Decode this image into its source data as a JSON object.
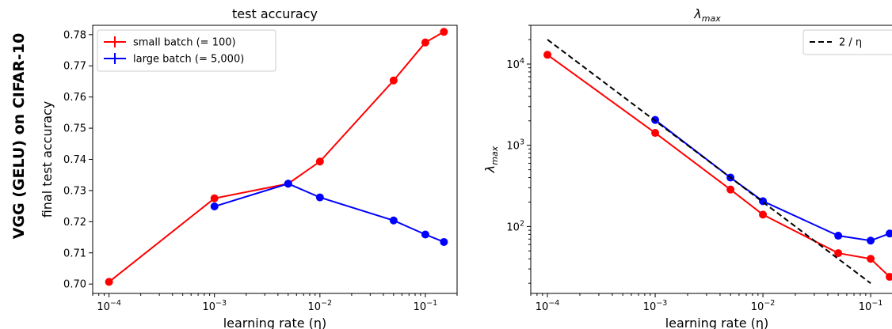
{
  "row_label": "VGG (GELU) on CIFAR-10",
  "chart_data": [
    {
      "type": "line",
      "title": "test accuracy",
      "xlabel": "learning rate (η)",
      "ylabel": "final test accuracy",
      "xscale": "log",
      "yscale": "linear",
      "xlim": [
        7e-05,
        0.2
      ],
      "ylim": [
        0.697,
        0.783
      ],
      "xticks": [
        {
          "base": "10",
          "exp": "−4",
          "value": 0.0001
        },
        {
          "base": "10",
          "exp": "−3",
          "value": 0.001
        },
        {
          "base": "10",
          "exp": "−2",
          "value": 0.01
        },
        {
          "base": "10",
          "exp": "−1",
          "value": 0.1
        }
      ],
      "yticks": [
        {
          "label": "0.70",
          "value": 0.7
        },
        {
          "label": "0.71",
          "value": 0.71
        },
        {
          "label": "0.72",
          "value": 0.72
        },
        {
          "label": "0.73",
          "value": 0.73
        },
        {
          "label": "0.74",
          "value": 0.74
        },
        {
          "label": "0.75",
          "value": 0.75
        },
        {
          "label": "0.76",
          "value": 0.76
        },
        {
          "label": "0.77",
          "value": 0.77
        },
        {
          "label": "0.78",
          "value": 0.78
        }
      ],
      "legend_position": "top-left",
      "series": [
        {
          "name": "small batch (= 100)",
          "color": "#ff0000",
          "x": [
            0.0001,
            0.001,
            0.005,
            0.01,
            0.05,
            0.1,
            0.15
          ],
          "y": [
            0.7007,
            0.7275,
            0.7322,
            0.7393,
            0.7653,
            0.7775,
            0.7809
          ]
        },
        {
          "name": "large batch (= 5,000)",
          "color": "#0000ff",
          "x": [
            0.001,
            0.005,
            0.01,
            0.05,
            0.1,
            0.15
          ],
          "y": [
            0.7249,
            0.7322,
            0.7278,
            0.7204,
            0.7159,
            0.7135
          ]
        }
      ]
    },
    {
      "type": "line",
      "title": "λmax",
      "title_base": "λ",
      "title_sub": "max",
      "xlabel": "learning rate (η)",
      "ylabel": "λmax",
      "xscale": "log",
      "yscale": "log",
      "xlim": [
        7e-05,
        0.2
      ],
      "ylim": [
        15,
        30000
      ],
      "xticks": [
        {
          "base": "10",
          "exp": "−4",
          "value": 0.0001
        },
        {
          "base": "10",
          "exp": "−3",
          "value": 0.001
        },
        {
          "base": "10",
          "exp": "−2",
          "value": 0.01
        },
        {
          "base": "10",
          "exp": "−1",
          "value": 0.1
        }
      ],
      "yticks": [
        {
          "base": "10",
          "exp": "2",
          "value": 100
        },
        {
          "base": "10",
          "exp": "3",
          "value": 1000
        },
        {
          "base": "10",
          "exp": "4",
          "value": 10000
        }
      ],
      "legend_position": "top-right",
      "series": [
        {
          "name": "",
          "color": "#ff0000",
          "x": [
            0.0001,
            0.001,
            0.005,
            0.01,
            0.05,
            0.1,
            0.15
          ],
          "y": [
            13000,
            1420,
            285,
            140,
            47,
            40,
            24
          ]
        },
        {
          "name": "",
          "color": "#0000ff",
          "x": [
            0.001,
            0.005,
            0.01,
            0.05,
            0.1,
            0.15
          ],
          "y": [
            2050,
            400,
            205,
            77,
            67,
            82
          ]
        },
        {
          "name": "2 / η",
          "color": "#000000",
          "dashed": true,
          "x": [
            0.0001,
            0.1
          ],
          "y": [
            20000,
            20
          ]
        }
      ]
    }
  ]
}
